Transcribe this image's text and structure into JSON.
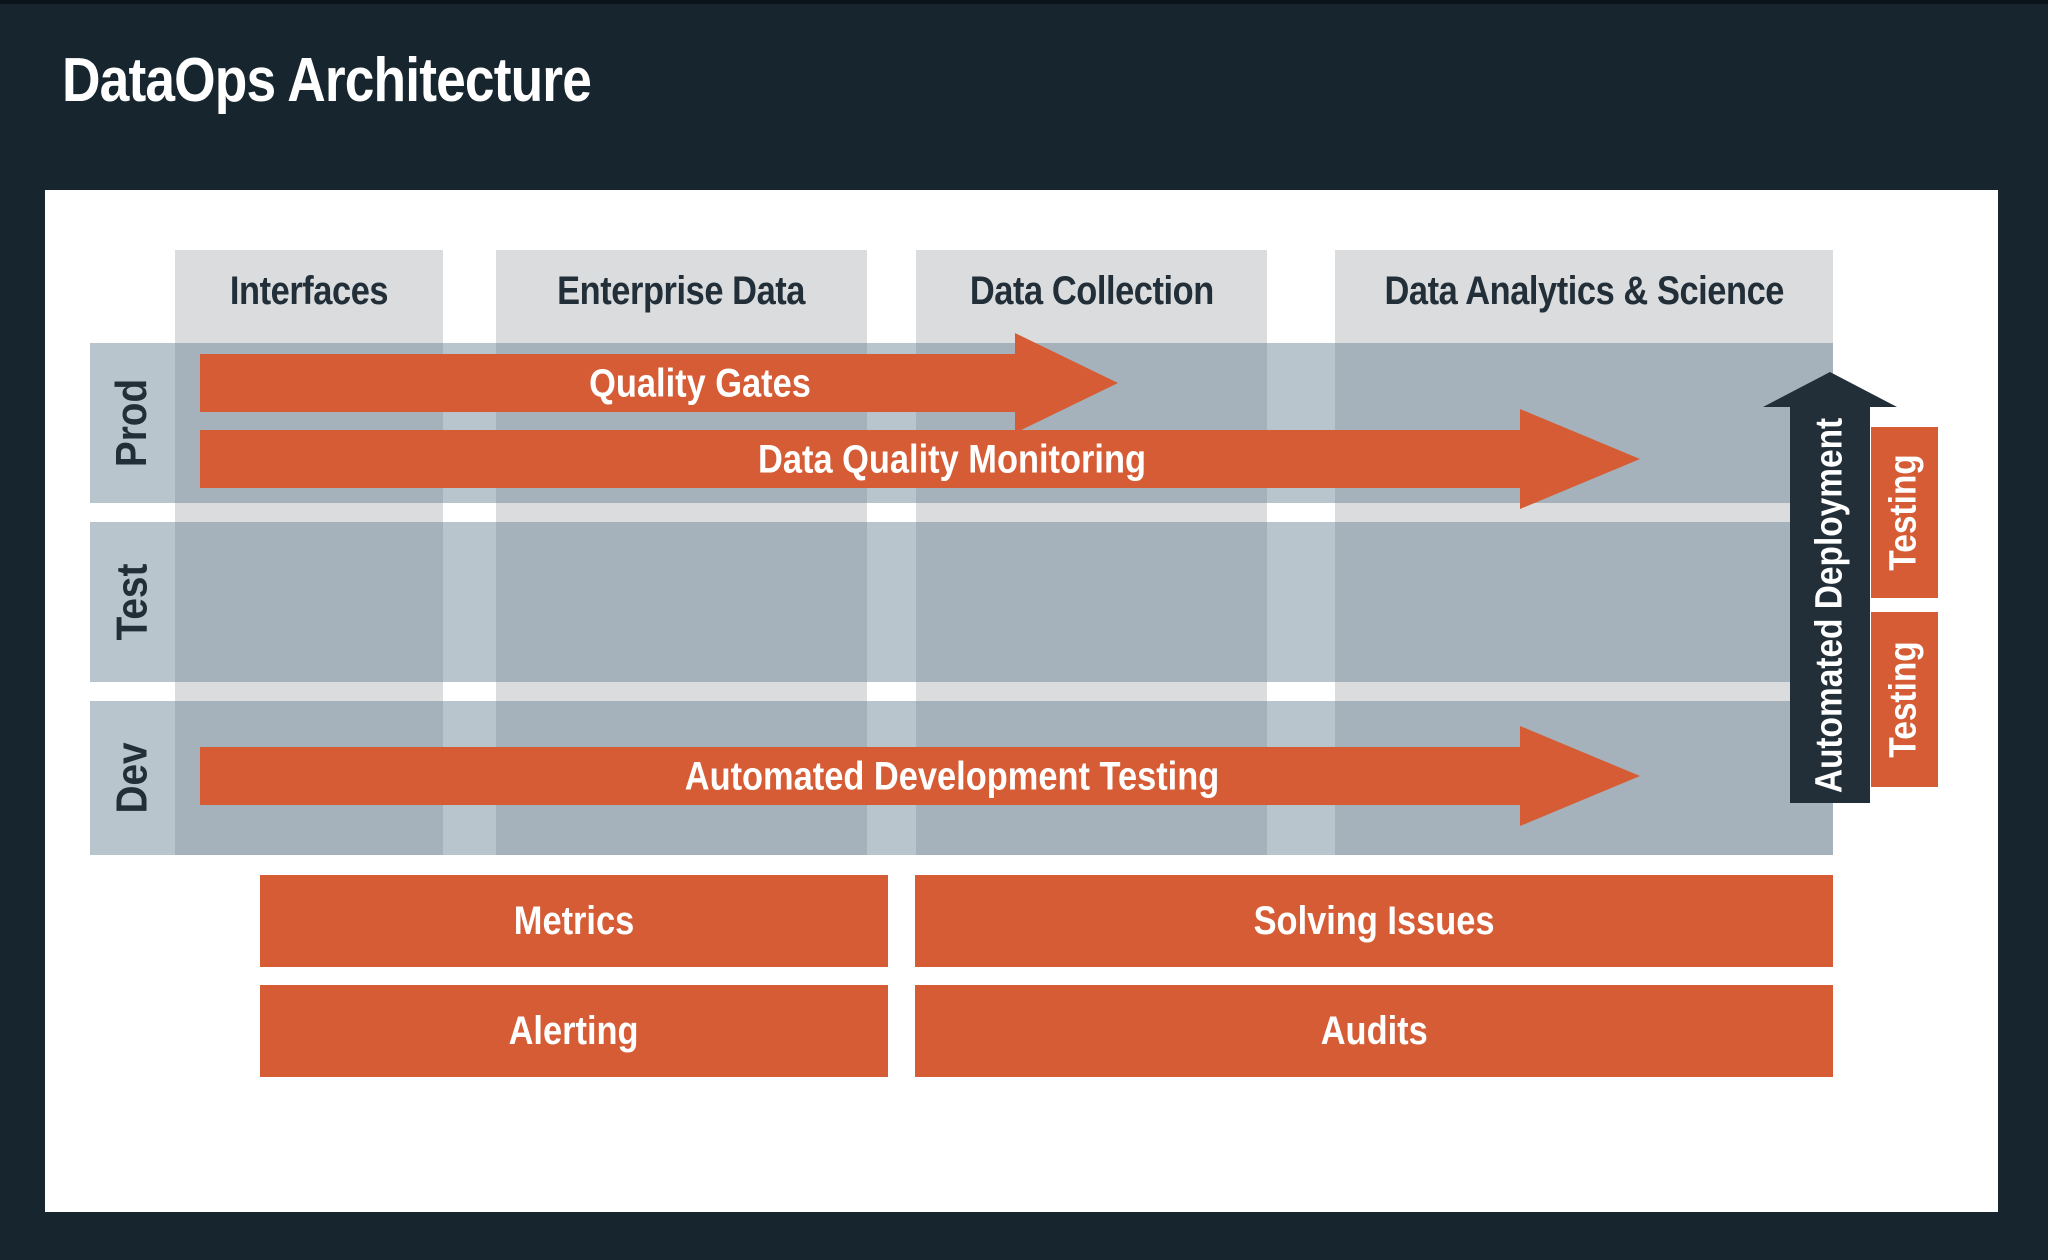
{
  "title": "DataOps Architecture",
  "columns": [
    {
      "label": "Interfaces"
    },
    {
      "label": "Enterprise Data"
    },
    {
      "label": "Data Collection"
    },
    {
      "label": "Data Analytics & Science"
    }
  ],
  "rows": [
    {
      "label": "Prod"
    },
    {
      "label": "Test"
    },
    {
      "label": "Dev"
    }
  ],
  "arrows": {
    "quality_gates": "Quality Gates",
    "data_quality_monitoring": "Data Quality Monitoring",
    "automated_development_testing": "Automated Development Testing"
  },
  "deployment": {
    "label": "Automated Deployment"
  },
  "testing_labels": [
    "Testing",
    "Testing"
  ],
  "bottom_bars": {
    "metrics": "Metrics",
    "solving_issues": "Solving Issues",
    "alerting": "Alerting",
    "audits": "Audits"
  },
  "colors": {
    "background": "#17262E",
    "panel": "#FFFFFF",
    "accent_orange": "#D55C35",
    "dark_arrow": "#222F39",
    "column_strip": "#DBDCDE",
    "row_band": "rgba(100,126,145,0.45)",
    "text_dark": "#222F39",
    "text_light": "#FFFFFF"
  }
}
